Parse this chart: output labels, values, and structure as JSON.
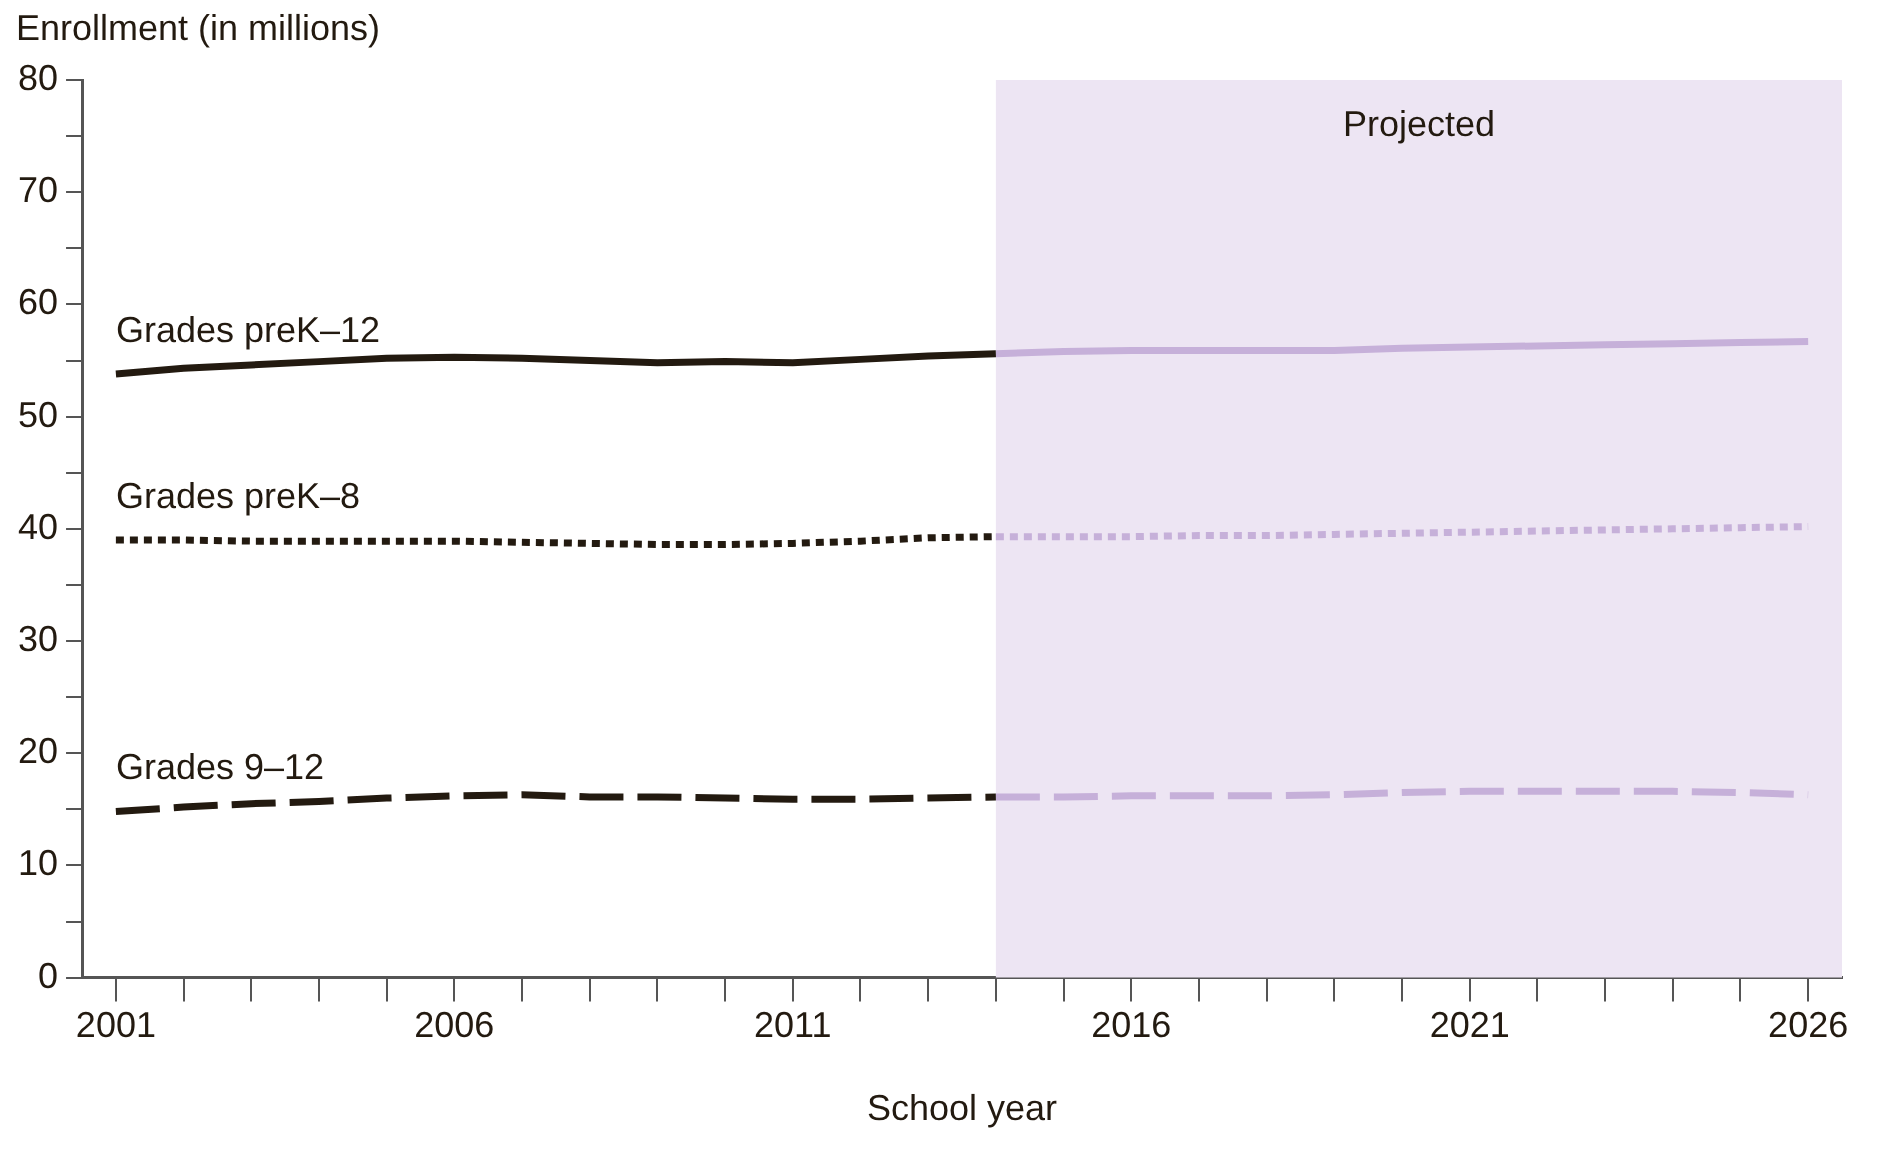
{
  "chart_data": {
    "type": "line",
    "xlabel": "School year",
    "ylabel": "Enrollment (in millions)",
    "xlim": [
      2000.5,
      2026.5
    ],
    "xticks": [
      2001,
      {
        "value": 2002,
        "label": null
      },
      {
        "value": 2003,
        "label": null
      },
      {
        "value": 2004,
        "label": null
      },
      {
        "value": 2005,
        "label": null
      },
      2006,
      {
        "value": 2007,
        "label": null
      },
      {
        "value": 2008,
        "label": null
      },
      {
        "value": 2009,
        "label": null
      },
      {
        "value": 2010,
        "label": null
      },
      2011,
      {
        "value": 2012,
        "label": null
      },
      {
        "value": 2013,
        "label": null
      },
      {
        "value": 2014,
        "label": null
      },
      {
        "value": 2015,
        "label": null
      },
      2016,
      {
        "value": 2017,
        "label": null
      },
      {
        "value": 2018,
        "label": null
      },
      {
        "value": 2019,
        "label": null
      },
      {
        "value": 2020,
        "label": null
      },
      2021,
      {
        "value": 2022,
        "label": null
      },
      {
        "value": 2023,
        "label": null
      },
      {
        "value": 2024,
        "label": null
      },
      {
        "value": 2025,
        "label": null
      },
      2026
    ],
    "ylim": [
      0,
      80
    ],
    "yticks": [
      0,
      {
        "value": 5,
        "label": null
      },
      10,
      {
        "value": 15,
        "label": null
      },
      20,
      {
        "value": 25,
        "label": null
      },
      30,
      {
        "value": 35,
        "label": null
      },
      40,
      {
        "value": 45,
        "label": null
      },
      50,
      {
        "value": 55,
        "label": null
      },
      60,
      {
        "value": 65,
        "label": null
      },
      70,
      {
        "value": 75,
        "label": null
      },
      80
    ],
    "grid": false,
    "legend": false,
    "marker": "none",
    "bands": [
      {
        "axis": "x",
        "from": 2014,
        "to": 2026.5,
        "label": "Projected",
        "color": "#ede5f3"
      }
    ],
    "series": [
      {
        "name": "Grades preK–12",
        "color": "#231a10",
        "line_style": "solid",
        "x": [
          2001,
          2002,
          2003,
          2004,
          2005,
          2006,
          2007,
          2008,
          2009,
          2010,
          2011,
          2012,
          2013,
          2014
        ],
        "values": [
          53.8,
          54.3,
          54.6,
          54.9,
          55.2,
          55.3,
          55.2,
          55.0,
          54.8,
          54.9,
          54.8,
          55.1,
          55.4,
          55.6
        ]
      },
      {
        "color": "#c6b0d9",
        "line_style": "solid",
        "x": [
          2014,
          2015,
          2016,
          2017,
          2018,
          2019,
          2020,
          2021,
          2022,
          2023,
          2024,
          2025,
          2026
        ],
        "values": [
          55.6,
          55.8,
          55.9,
          55.9,
          55.9,
          55.9,
          56.1,
          56.2,
          56.3,
          56.4,
          56.5,
          56.6,
          56.7
        ]
      },
      {
        "name": "Grades preK–8",
        "color": "#231a10",
        "line_style": "dotted",
        "x": [
          2001,
          2002,
          2003,
          2004,
          2005,
          2006,
          2007,
          2008,
          2009,
          2010,
          2011,
          2012,
          2013,
          2014
        ],
        "values": [
          39.0,
          39.0,
          38.9,
          38.9,
          38.9,
          38.9,
          38.8,
          38.7,
          38.6,
          38.6,
          38.7,
          38.9,
          39.2,
          39.3
        ]
      },
      {
        "color": "#c6b0d9",
        "line_style": "dotted",
        "x": [
          2014,
          2015,
          2016,
          2017,
          2018,
          2019,
          2020,
          2021,
          2022,
          2023,
          2024,
          2025,
          2026
        ],
        "values": [
          39.3,
          39.3,
          39.3,
          39.4,
          39.4,
          39.5,
          39.6,
          39.7,
          39.8,
          39.9,
          40.0,
          40.1,
          40.2
        ]
      },
      {
        "name": "Grades 9–12",
        "color": "#231a10",
        "line_style": "dashed",
        "x": [
          2001,
          2002,
          2003,
          2004,
          2005,
          2006,
          2007,
          2008,
          2009,
          2010,
          2011,
          2012,
          2013,
          2014
        ],
        "values": [
          14.8,
          15.2,
          15.5,
          15.7,
          16.0,
          16.2,
          16.3,
          16.1,
          16.1,
          16.0,
          15.9,
          15.9,
          16.0,
          16.1
        ]
      },
      {
        "color": "#c6b0d9",
        "line_style": "dashed",
        "x": [
          2014,
          2015,
          2016,
          2017,
          2018,
          2019,
          2020,
          2021,
          2022,
          2023,
          2024,
          2025,
          2026
        ],
        "values": [
          16.1,
          16.1,
          16.2,
          16.2,
          16.2,
          16.3,
          16.5,
          16.6,
          16.6,
          16.6,
          16.6,
          16.5,
          16.3
        ]
      }
    ]
  }
}
